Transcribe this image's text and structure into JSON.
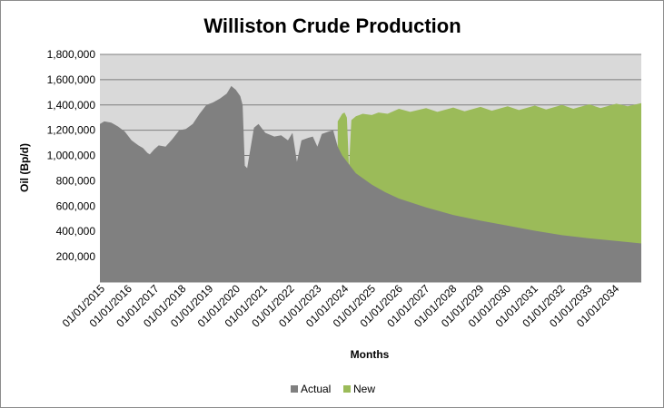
{
  "chart_data": {
    "type": "area",
    "title": "Williston Crude Production",
    "xlabel": "Months",
    "ylabel": "Oil (Bp/d)",
    "ylim": [
      0,
      1800000
    ],
    "yticks": [
      200000,
      400000,
      600000,
      800000,
      1000000,
      1200000,
      1400000,
      1600000,
      1800000
    ],
    "ytick_labels": [
      "200,000",
      "400,000",
      "600,000",
      "800,000",
      "1,000,000",
      "1,200,000",
      "1,400,000",
      "1,600,000",
      "1,800,000"
    ],
    "xlim": [
      "2015-01-01",
      "2034-12-01"
    ],
    "xtick_labels": [
      "01/01/2015",
      "01/01/2016",
      "01/01/2017",
      "01/01/2018",
      "01/01/2019",
      "01/01/2020",
      "01/01/2021",
      "01/01/2022",
      "01/01/2023",
      "01/01/2024",
      "01/01/2025",
      "01/01/2026",
      "01/01/2027",
      "01/01/2028",
      "01/01/2029",
      "01/01/2030",
      "01/01/2031",
      "01/01/2032",
      "01/01/2033",
      "01/01/2034"
    ],
    "grid": "horizontal",
    "legend_position": "bottom",
    "plot_background": "#d9d9d9",
    "series": [
      {
        "name": "Actual",
        "color": "#808080",
        "points": [
          [
            "2015-01-01",
            1250000
          ],
          [
            "2015-03-01",
            1270000
          ],
          [
            "2015-06-01",
            1260000
          ],
          [
            "2015-09-01",
            1230000
          ],
          [
            "2015-12-01",
            1190000
          ],
          [
            "2016-03-01",
            1120000
          ],
          [
            "2016-06-01",
            1080000
          ],
          [
            "2016-08-01",
            1060000
          ],
          [
            "2016-10-01",
            1020000
          ],
          [
            "2016-11-01",
            1010000
          ],
          [
            "2017-01-01",
            1050000
          ],
          [
            "2017-03-01",
            1080000
          ],
          [
            "2017-06-01",
            1070000
          ],
          [
            "2017-09-01",
            1130000
          ],
          [
            "2017-12-01",
            1200000
          ],
          [
            "2018-03-01",
            1210000
          ],
          [
            "2018-06-01",
            1250000
          ],
          [
            "2018-09-01",
            1330000
          ],
          [
            "2018-12-01",
            1400000
          ],
          [
            "2019-03-01",
            1420000
          ],
          [
            "2019-06-01",
            1450000
          ],
          [
            "2019-09-01",
            1490000
          ],
          [
            "2019-11-01",
            1550000
          ],
          [
            "2020-01-01",
            1520000
          ],
          [
            "2020-03-01",
            1470000
          ],
          [
            "2020-04-01",
            1400000
          ],
          [
            "2020-05-01",
            920000
          ],
          [
            "2020-06-01",
            900000
          ],
          [
            "2020-09-01",
            1220000
          ],
          [
            "2020-11-01",
            1250000
          ],
          [
            "2021-02-01",
            1180000
          ],
          [
            "2021-06-01",
            1150000
          ],
          [
            "2021-09-01",
            1160000
          ],
          [
            "2021-12-01",
            1120000
          ],
          [
            "2022-02-01",
            1180000
          ],
          [
            "2022-04-01",
            950000
          ],
          [
            "2022-06-01",
            1120000
          ],
          [
            "2022-09-01",
            1140000
          ],
          [
            "2022-11-01",
            1150000
          ],
          [
            "2023-01-01",
            1070000
          ],
          [
            "2023-03-01",
            1170000
          ],
          [
            "2023-06-01",
            1190000
          ],
          [
            "2023-08-01",
            1200000
          ],
          [
            "2023-10-01",
            1070000
          ],
          [
            "2023-12-01",
            1000000
          ],
          [
            "2024-03-01",
            930000
          ],
          [
            "2024-06-01",
            860000
          ],
          [
            "2025-01-01",
            770000
          ],
          [
            "2025-07-01",
            710000
          ],
          [
            "2026-01-01",
            660000
          ],
          [
            "2027-01-01",
            590000
          ],
          [
            "2028-01-01",
            530000
          ],
          [
            "2029-01-01",
            485000
          ],
          [
            "2030-01-01",
            445000
          ],
          [
            "2031-01-01",
            405000
          ],
          [
            "2032-01-01",
            370000
          ],
          [
            "2033-01-01",
            345000
          ],
          [
            "2034-01-01",
            325000
          ],
          [
            "2034-12-01",
            305000
          ]
        ]
      },
      {
        "name": "New",
        "color": "#9bbb59",
        "points": [
          [
            "2023-10-01",
            1270000
          ],
          [
            "2023-12-01",
            1330000
          ],
          [
            "2024-01-01",
            1340000
          ],
          [
            "2024-02-01",
            1300000
          ],
          [
            "2024-03-01",
            900000
          ],
          [
            "2024-04-01",
            1280000
          ],
          [
            "2024-06-01",
            1310000
          ],
          [
            "2024-09-01",
            1330000
          ],
          [
            "2025-01-01",
            1320000
          ],
          [
            "2025-04-01",
            1340000
          ],
          [
            "2025-08-01",
            1330000
          ],
          [
            "2026-01-01",
            1370000
          ],
          [
            "2026-06-01",
            1345000
          ],
          [
            "2027-01-01",
            1375000
          ],
          [
            "2027-06-01",
            1345000
          ],
          [
            "2028-01-01",
            1380000
          ],
          [
            "2028-06-01",
            1350000
          ],
          [
            "2029-01-01",
            1385000
          ],
          [
            "2029-06-01",
            1355000
          ],
          [
            "2030-01-01",
            1390000
          ],
          [
            "2030-06-01",
            1360000
          ],
          [
            "2031-01-01",
            1395000
          ],
          [
            "2031-06-01",
            1365000
          ],
          [
            "2032-01-01",
            1400000
          ],
          [
            "2032-06-01",
            1370000
          ],
          [
            "2033-01-01",
            1405000
          ],
          [
            "2033-06-01",
            1375000
          ],
          [
            "2034-01-01",
            1410000
          ],
          [
            "2034-06-01",
            1390000
          ],
          [
            "2034-12-01",
            1415000
          ]
        ]
      }
    ]
  }
}
